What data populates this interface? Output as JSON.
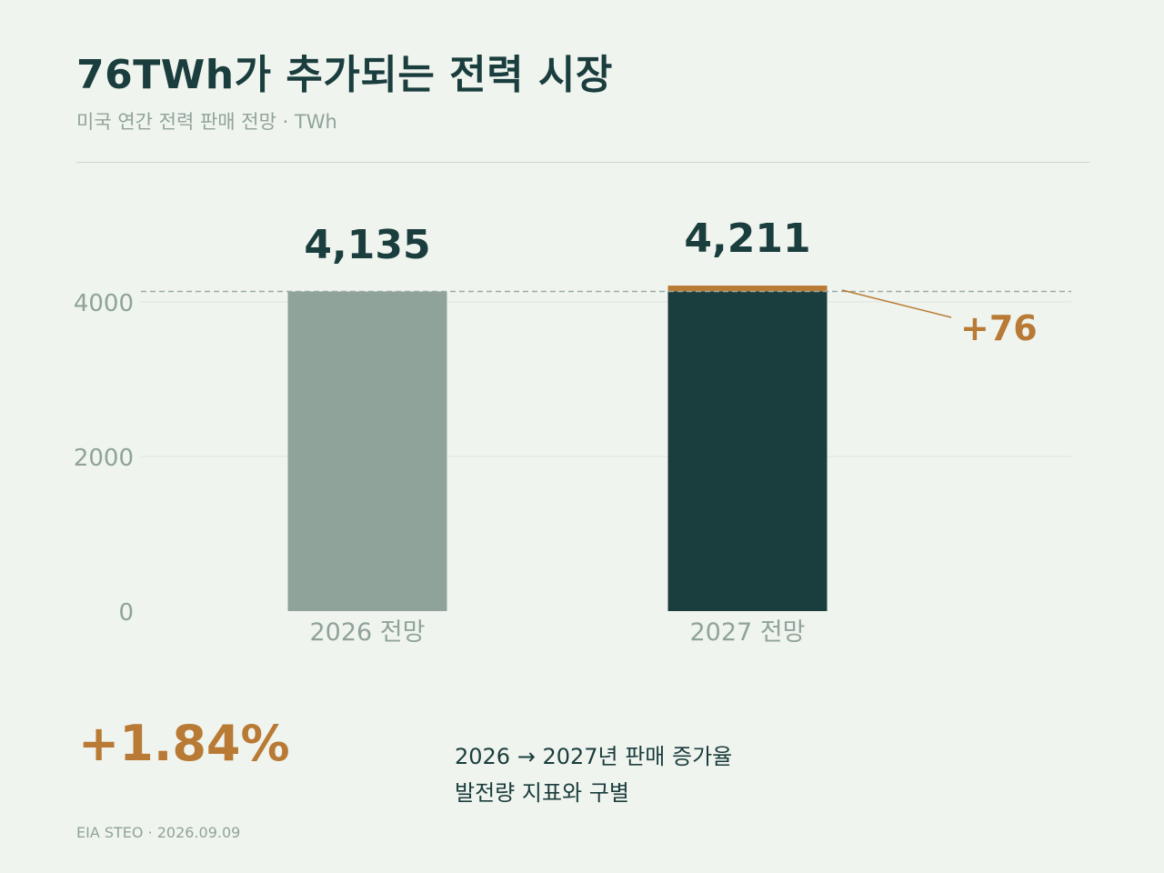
{
  "header": {
    "title": "76TWh가 추가되는 전력 시장",
    "subtitle": "미국 연간 전력 판매 전망 · TWh"
  },
  "chart_data": {
    "type": "bar",
    "categories": [
      "2026 전망",
      "2027 전망"
    ],
    "values": [
      4135,
      4211
    ],
    "value_labels": [
      "4,135",
      "4,211"
    ],
    "increment": {
      "value": 76,
      "label": "+76"
    },
    "reference_line": 4135,
    "ylim": [
      0,
      5000
    ],
    "yticks": [
      0,
      2000,
      4000
    ],
    "grid": true,
    "colors": {
      "bar_2026": "#8fa39a",
      "bar_2027": "#1a3d3d",
      "increment": "#b87a35",
      "value_label": "#1a3d3d",
      "tick": "#8fa39a"
    }
  },
  "summary": {
    "growth_pct": "+1.84%",
    "note_line1": "2026 → 2027년 판매 증가율",
    "note_line2": "발전량 지표와 구별"
  },
  "footer": {
    "source": "EIA STEO · 2026.09.09"
  }
}
